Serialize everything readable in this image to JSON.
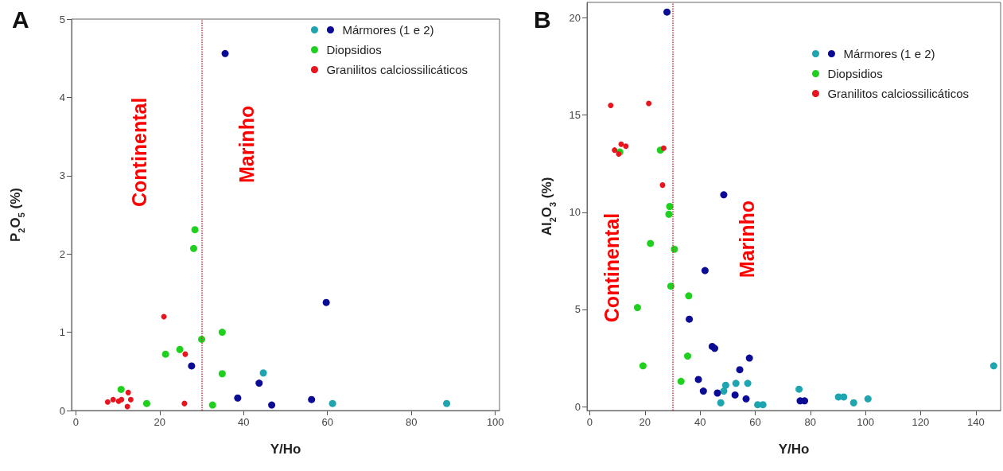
{
  "chart_data": [
    {
      "type": "scatter",
      "title": "A",
      "xlabel": "Y/Ho",
      "ylabel": "P$_{2}$O$_{5}$ (%)",
      "xlim": [
        -1,
        101
      ],
      "ylim": [
        0,
        5
      ],
      "xticks": [
        0,
        20,
        40,
        60,
        80,
        100
      ],
      "yticks": [
        0,
        1,
        2,
        3,
        4,
        5
      ],
      "grid": false,
      "legend": "top right",
      "marker": "circle",
      "series": [
        {
          "color": "#1ea5b0",
          "x": [
            44.7,
            61.2,
            88.4
          ],
          "values": [
            0.48,
            0.09,
            0.09
          ]
        },
        {
          "name": "Mármores (1 e 2)",
          "color": "#0b0b96",
          "x": [
            35.6,
            59.7,
            27.6,
            43.7,
            38.6,
            46.7,
            56.2
          ],
          "values": [
            4.56,
            1.38,
            0.57,
            0.35,
            0.16,
            0.07,
            0.14
          ]
        },
        {
          "name": "Diopsidios",
          "color": "#1fd01f",
          "x": [
            28.4,
            28.1,
            30.0,
            34.9,
            21.4,
            24.8,
            34.9,
            10.8,
            16.9,
            32.6
          ],
          "values": [
            2.31,
            2.07,
            0.91,
            1.0,
            0.72,
            0.78,
            0.47,
            0.27,
            0.09,
            0.07
          ]
        },
        {
          "name": "Granilitos calciossilicáticos",
          "color": "#e8141e",
          "x": [
            21.0,
            26.1,
            25.9,
            7.6,
            8.9,
            10.2,
            10.9,
            12.5,
            13.1,
            12.3
          ],
          "values": [
            1.2,
            0.72,
            0.09,
            0.11,
            0.14,
            0.12,
            0.14,
            0.23,
            0.14,
            0.05
          ]
        }
      ],
      "ref_lines": [
        {
          "axis": "x",
          "value": 30,
          "color": "#cc3344",
          "line_style": "dotted"
        }
      ],
      "annotations": [
        "Continental",
        "Marinho"
      ]
    },
    {
      "type": "scatter",
      "title": "B",
      "xlabel": "Y/Ho",
      "ylabel": "Al$_{2}$O$_{3}$ (%)",
      "xlim": [
        -1,
        149
      ],
      "ylim": [
        -0.2,
        20.8
      ],
      "xticks": [
        0,
        20,
        40,
        60,
        80,
        100,
        120,
        140
      ],
      "yticks": [
        0,
        5,
        10,
        15,
        20
      ],
      "grid": false,
      "legend": "top right",
      "marker": "circle",
      "series": [
        {
          "color": "#1ea5b0",
          "x": [
            49.3,
            48.6,
            53.0,
            57.3,
            47.5,
            60.9,
            62.8,
            75.9,
            90.2,
            92.1,
            95.7,
            100.9,
            146.5
          ],
          "values": [
            1.1,
            0.8,
            1.2,
            1.2,
            0.2,
            0.1,
            0.1,
            0.9,
            0.5,
            0.5,
            0.2,
            0.4,
            2.1
          ]
        },
        {
          "name": "Mármores (1 e 2)",
          "color": "#0b0b96",
          "x": [
            28.0,
            48.6,
            41.8,
            36.1,
            44.4,
            45.3,
            57.9,
            54.4,
            39.4,
            41.2,
            46.3,
            52.7,
            56.7,
            76.3,
            77.9
          ],
          "values": [
            20.3,
            10.9,
            7.0,
            4.5,
            3.1,
            3.0,
            2.5,
            1.9,
            1.4,
            0.8,
            0.7,
            0.6,
            0.4,
            0.3,
            0.3
          ]
        },
        {
          "name": "Diopsidios",
          "color": "#1fd01f",
          "x": [
            25.6,
            10.9,
            29.0,
            28.7,
            22.0,
            30.7,
            29.4,
            35.9,
            17.3,
            35.5,
            19.3,
            33.1
          ],
          "values": [
            13.2,
            13.1,
            10.3,
            9.9,
            8.4,
            8.1,
            6.2,
            5.7,
            5.1,
            2.6,
            2.1,
            1.3
          ]
        },
        {
          "name": "Granilitos calciossilicáticos",
          "color": "#e8141e",
          "x": [
            7.6,
            21.4,
            9.0,
            10.5,
            11.4,
            13.1,
            26.8,
            26.4
          ],
          "values": [
            15.5,
            15.6,
            13.2,
            13.0,
            13.5,
            13.4,
            13.3,
            11.4
          ]
        }
      ],
      "ref_lines": [
        {
          "axis": "x",
          "value": 30,
          "color": "#cc3344",
          "line_style": "dotted"
        }
      ],
      "annotations": [
        "Continental",
        "Marinho"
      ]
    }
  ]
}
